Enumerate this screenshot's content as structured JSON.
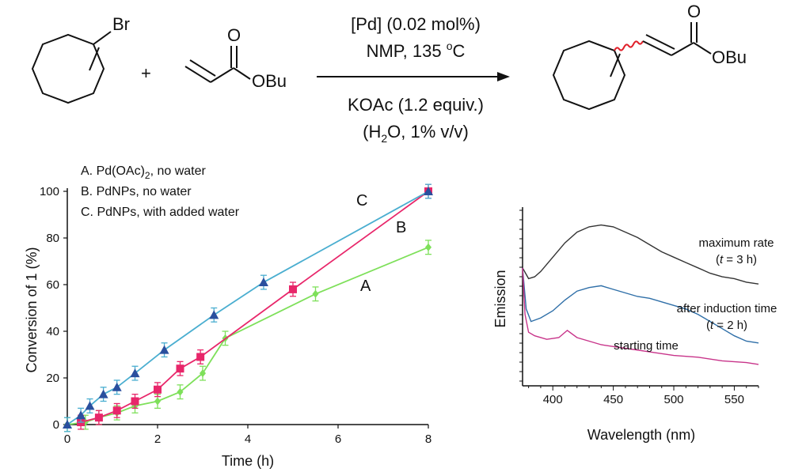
{
  "reaction": {
    "substrate_label": "Br",
    "plus": "+",
    "ester_label": "OBu",
    "carbonyl_o": "O",
    "product_ester_label": "OBu",
    "product_carbonyl_o": "O",
    "conditions_above": [
      "[Pd]  (0.02 mol%)",
      "NMP,  135 °C"
    ],
    "conditions_below": [
      "KOAc (1.2 equiv.)",
      "(H2O, 1% v/v)"
    ],
    "colors": {
      "wavy_bond": "#e0202a",
      "lines": "#111111"
    }
  },
  "chart_data": [
    {
      "type": "line",
      "xlabel": "Time (h)",
      "ylabel": "Conversion of 1 (%)",
      "xlim": [
        0,
        8
      ],
      "ylim": [
        0,
        100
      ],
      "xticks": [
        0,
        2,
        4,
        6,
        8
      ],
      "yticks": [
        0,
        20,
        40,
        60,
        80,
        100
      ],
      "legend": [
        "A. Pd(OAc)2, no water",
        "B. PdNPs, no water",
        "C. PdNPs, with added water"
      ],
      "legend_placement": "top-left",
      "series": [
        {
          "name": "A",
          "color": "#7ee05a",
          "marker": "diamond",
          "points": [
            [
              0,
              0
            ],
            [
              0.4,
              1
            ],
            [
              0.7,
              3
            ],
            [
              1.1,
              5
            ],
            [
              1.5,
              8
            ],
            [
              2,
              10
            ],
            [
              2.5,
              14
            ],
            [
              3,
              22
            ],
            [
              3.5,
              37
            ],
            [
              5.5,
              56
            ],
            [
              8,
              76
            ]
          ],
          "error": 3
        },
        {
          "name": "B",
          "color": "#e8266a",
          "marker": "square",
          "points": [
            [
              0.3,
              1
            ],
            [
              0.7,
              3
            ],
            [
              1.1,
              6
            ],
            [
              1.5,
              10
            ],
            [
              2,
              15
            ],
            [
              2.5,
              24
            ],
            [
              2.95,
              29
            ],
            [
              5,
              58
            ],
            [
              8,
              100
            ]
          ],
          "error": 3
        },
        {
          "name": "C",
          "color": "#2a4f9e",
          "line_color": "#4aaed0",
          "marker": "triangle",
          "points": [
            [
              0,
              0
            ],
            [
              0.3,
              4
            ],
            [
              0.5,
              8
            ],
            [
              0.8,
              13
            ],
            [
              1.1,
              16
            ],
            [
              1.5,
              22
            ],
            [
              2.15,
              32
            ],
            [
              3.25,
              47
            ],
            [
              4.35,
              61
            ],
            [
              8,
              100
            ]
          ],
          "error": 3
        }
      ]
    },
    {
      "type": "line",
      "xlabel": "Wavelength (nm)",
      "ylabel": "Emission",
      "xlim": [
        375,
        570
      ],
      "xticks": [
        400,
        450,
        500,
        550
      ],
      "series": [
        {
          "name": "maximum rate",
          "condition": "(t = 3 h)",
          "color": "#333333",
          "points": [
            [
              375,
              0.66
            ],
            [
              380,
              0.6
            ],
            [
              385,
              0.61
            ],
            [
              390,
              0.64
            ],
            [
              400,
              0.72
            ],
            [
              410,
              0.8
            ],
            [
              420,
              0.86
            ],
            [
              430,
              0.89
            ],
            [
              440,
              0.9
            ],
            [
              450,
              0.89
            ],
            [
              460,
              0.86
            ],
            [
              470,
              0.83
            ],
            [
              480,
              0.79
            ],
            [
              490,
              0.75
            ],
            [
              500,
              0.72
            ],
            [
              510,
              0.69
            ],
            [
              520,
              0.66
            ],
            [
              530,
              0.63
            ],
            [
              540,
              0.61
            ],
            [
              550,
              0.6
            ],
            [
              560,
              0.58
            ],
            [
              570,
              0.57
            ]
          ]
        },
        {
          "name": "after induction time",
          "condition": "(t = 2 h)",
          "color": "#2f6fa8",
          "points": [
            [
              375,
              0.66
            ],
            [
              378,
              0.43
            ],
            [
              382,
              0.36
            ],
            [
              390,
              0.38
            ],
            [
              400,
              0.42
            ],
            [
              410,
              0.48
            ],
            [
              420,
              0.53
            ],
            [
              430,
              0.55
            ],
            [
              440,
              0.56
            ],
            [
              450,
              0.54
            ],
            [
              460,
              0.52
            ],
            [
              470,
              0.5
            ],
            [
              480,
              0.49
            ],
            [
              490,
              0.47
            ],
            [
              500,
              0.45
            ],
            [
              510,
              0.43
            ],
            [
              520,
              0.4
            ],
            [
              530,
              0.36
            ],
            [
              540,
              0.32
            ],
            [
              550,
              0.28
            ],
            [
              560,
              0.25
            ],
            [
              570,
              0.24
            ]
          ]
        },
        {
          "name": "starting time",
          "color": "#c8348a",
          "points": [
            [
              375,
              0.66
            ],
            [
              377,
              0.4
            ],
            [
              380,
              0.3
            ],
            [
              385,
              0.28
            ],
            [
              395,
              0.26
            ],
            [
              405,
              0.27
            ],
            [
              412,
              0.31
            ],
            [
              420,
              0.27
            ],
            [
              430,
              0.25
            ],
            [
              440,
              0.23
            ],
            [
              450,
              0.22
            ],
            [
              460,
              0.21
            ],
            [
              480,
              0.19
            ],
            [
              500,
              0.17
            ],
            [
              520,
              0.16
            ],
            [
              540,
              0.14
            ],
            [
              560,
              0.13
            ],
            [
              570,
              0.12
            ]
          ]
        }
      ]
    }
  ]
}
